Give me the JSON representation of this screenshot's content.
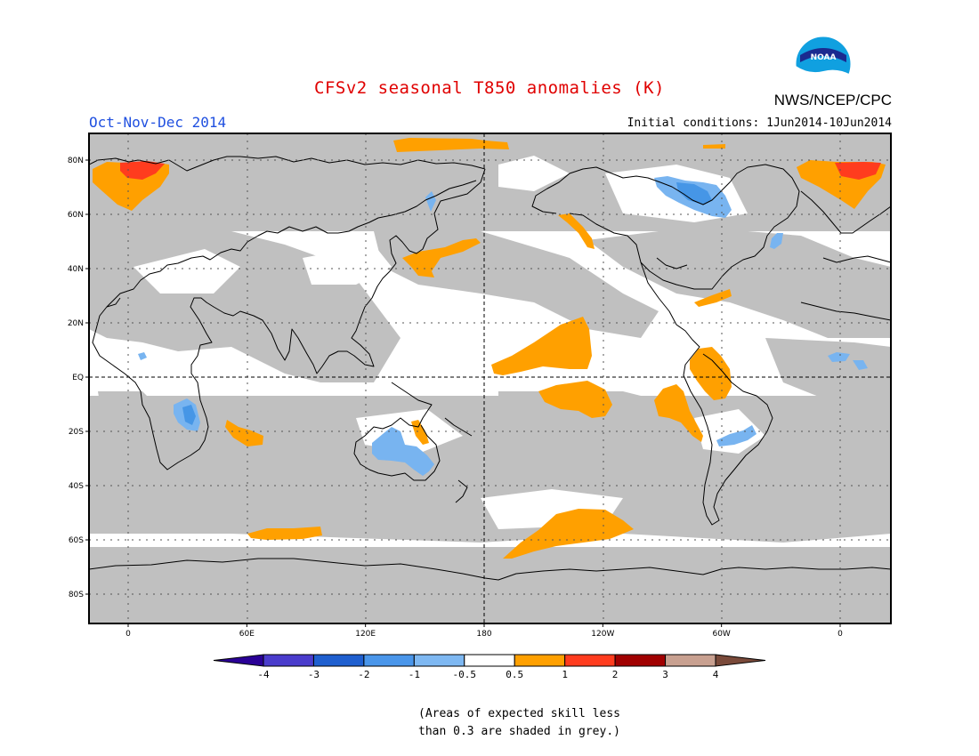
{
  "title": "CFSv2 seasonal T850 anomalies (K)",
  "season": "Oct-Nov-Dec 2014",
  "initial_conditions": "Initial conditions: 1Jun2014-10Jun2014",
  "agency": "NWS/NCEP/CPC",
  "logo_text": "NOAA",
  "note": {
    "line1": "(Areas of expected skill less",
    "line2": "than 0.3 are shaded in grey.)"
  },
  "map": {
    "lat_labels": [
      "80N",
      "60N",
      "40N",
      "20N",
      "EQ",
      "20S",
      "40S",
      "60S",
      "80S"
    ],
    "lon_labels": [
      "0",
      "60E",
      "120E",
      "180",
      "120W",
      "60W",
      "0"
    ],
    "lat_values": [
      80,
      60,
      40,
      20,
      0,
      -20,
      -40,
      -60,
      -80
    ],
    "lon_values": [
      0,
      60,
      120,
      180,
      240,
      300,
      360
    ],
    "colors": {
      "skill_grey": "#c0c0c0",
      "warm_05_1": "#ffa000",
      "warm_1_2": "#ff3c1e",
      "cool_minus1_minus05": "#78b4f0",
      "cool_minus2_minus1": "#4696e6",
      "coast": "#000000"
    },
    "regions": [
      {
        "name": "barents-warm-anomaly",
        "level": "0.5 to 1"
      },
      {
        "name": "barents-core-anomaly",
        "level": "1 to 2"
      },
      {
        "name": "greenland-sea-warm-anomaly",
        "level": "0.5 to 1"
      },
      {
        "name": "bering-arctic-warm-anomaly",
        "level": "0.5 to 1"
      },
      {
        "name": "japan-kuroshio-warm-anomaly",
        "level": "0.5 to 1"
      },
      {
        "name": "alaska-coast-warm-anomaly",
        "level": "0.5 to 1"
      },
      {
        "name": "central-pacific-warm-anomaly",
        "level": "0.5 to 1"
      },
      {
        "name": "south-pacific-warm-anomaly",
        "level": "0.5 to 1"
      },
      {
        "name": "peru-coast-warm-anomaly",
        "level": "0.5 to 1"
      },
      {
        "name": "northern-south-america-warm-anomaly",
        "level": "0.5 to 1"
      },
      {
        "name": "southern-ocean-warm-anomaly",
        "level": "0.5 to 1"
      },
      {
        "name": "madagascar-warm-anomaly",
        "level": "0.5 to 1"
      },
      {
        "name": "indian-ocean-south-warm-anomaly",
        "level": "0.5 to 1"
      },
      {
        "name": "australia-cool-anomaly",
        "level": "-1 to -0.5"
      },
      {
        "name": "southern-africa-cool-anomaly",
        "level": "-2 to -0.5"
      },
      {
        "name": "hudson-bay-cool-anomaly",
        "level": "-1 to -0.5"
      },
      {
        "name": "brazil-cool-anomaly",
        "level": "-1 to -0.5"
      }
    ]
  },
  "colorbar": {
    "labels": [
      "-4",
      "-3",
      "-2",
      "-1",
      "-0.5",
      "0.5",
      "1",
      "2",
      "3",
      "4"
    ],
    "colors": [
      "#2a0096",
      "#4a3ccc",
      "#1f5fcf",
      "#4a96ea",
      "#7eb8f2",
      "#ffffff",
      "#ffa000",
      "#ff3c1e",
      "#a00000",
      "#c8a090",
      "#7a4a3a"
    ]
  }
}
